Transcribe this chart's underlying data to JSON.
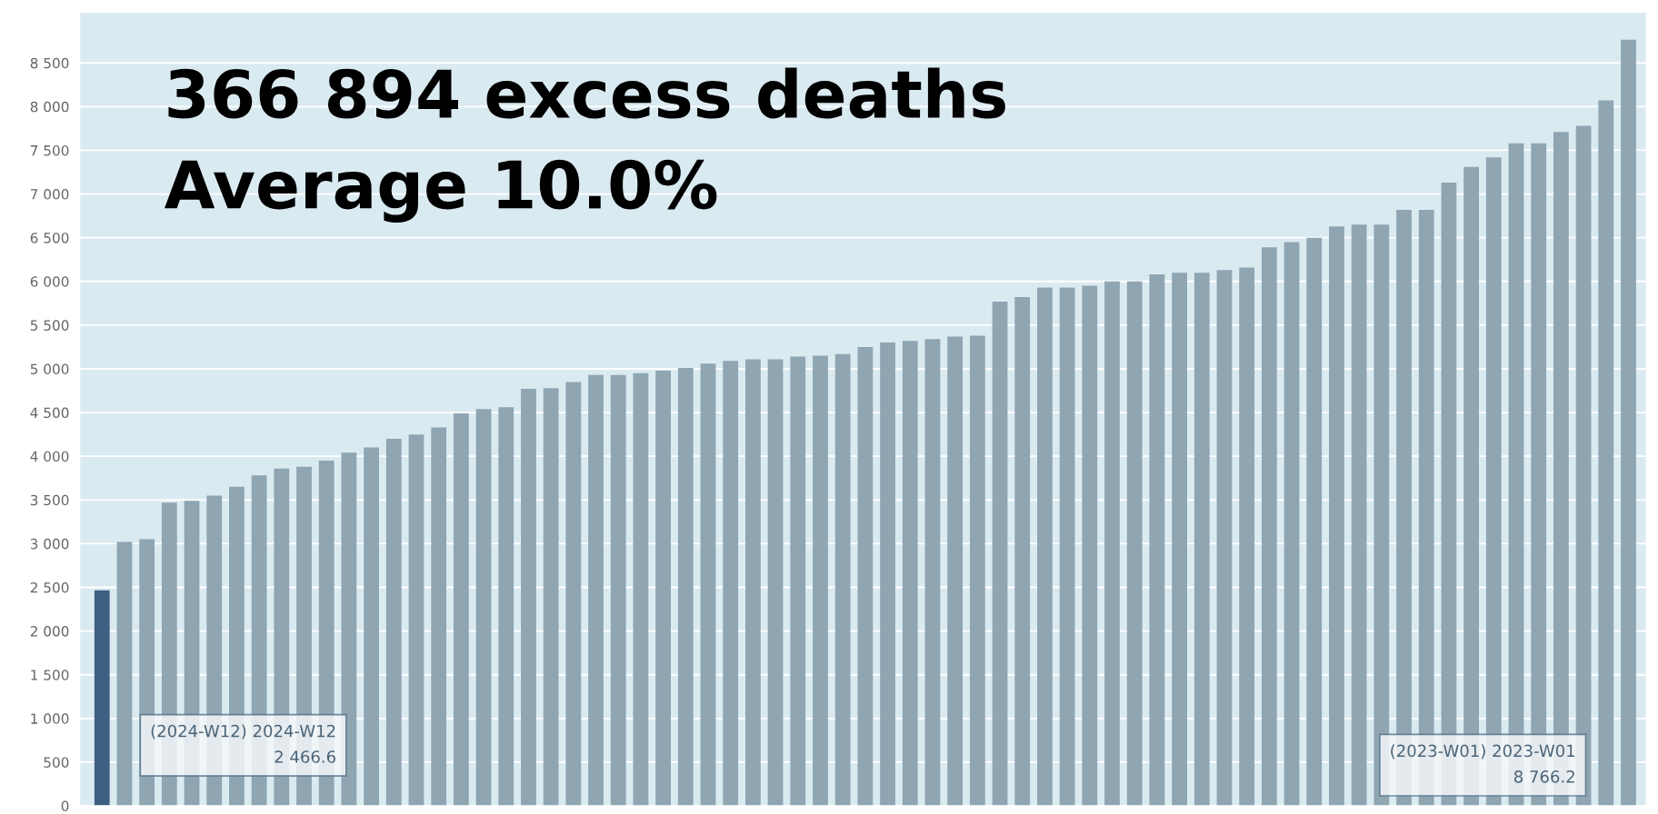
{
  "chart_data": {
    "type": "bar",
    "title": "366 894 excess deaths",
    "subtitle": "Average 10.0%",
    "categories": [
      null,
      null,
      null,
      null,
      null,
      null,
      null,
      null,
      null,
      null,
      null,
      null,
      null,
      null,
      null,
      null,
      null,
      null,
      null,
      null,
      null,
      null,
      null,
      null,
      null,
      null,
      null,
      null,
      null,
      null,
      null,
      null,
      null,
      null,
      null,
      null,
      null,
      null,
      null,
      null,
      null,
      null,
      null,
      null,
      null,
      null,
      null,
      null,
      null,
      null,
      null,
      null,
      null,
      null,
      null,
      null,
      null,
      null,
      null,
      null,
      null,
      null,
      null,
      null,
      null,
      null,
      null,
      null,
      null
    ],
    "values": [
      2466.6,
      3020,
      3050,
      3470,
      3490,
      3550,
      3650,
      3780,
      3860,
      3880,
      3950,
      4040,
      4100,
      4200,
      4250,
      4330,
      4490,
      4540,
      4560,
      4770,
      4780,
      4850,
      4930,
      4930,
      4950,
      4980,
      5010,
      5060,
      5090,
      5110,
      5110,
      5140,
      5150,
      5170,
      5250,
      5300,
      5320,
      5340,
      5370,
      5380,
      5770,
      5820,
      5930,
      5930,
      5950,
      6000,
      6000,
      6080,
      6100,
      6100,
      6130,
      6160,
      6390,
      6450,
      6500,
      6630,
      6650,
      6650,
      6820,
      6820,
      7130,
      7310,
      7420,
      7580,
      7580,
      7710,
      7780,
      8070,
      8766.2
    ],
    "colors": [
      "#3d6080",
      "#8fa5b2",
      "#8fa5b2",
      "#8fa5b2",
      "#8fa5b2",
      "#8fa5b2",
      "#8fa5b2",
      "#8fa5b2",
      "#8fa5b2",
      "#8fa5b2",
      "#8fa5b2",
      "#8fa5b2",
      "#8fa5b2",
      "#8fa5b2",
      "#8fa5b2",
      "#8fa5b2",
      "#8fa5b2",
      "#8fa5b2",
      "#8fa5b2",
      "#8fa5b2",
      "#8fa5b2",
      "#8fa5b2",
      "#8fa5b2",
      "#8fa5b2",
      "#8fa5b2",
      "#8fa5b2",
      "#8fa5b2",
      "#8fa5b2",
      "#8fa5b2",
      "#8fa5b2",
      "#8fa5b2",
      "#8fa5b2",
      "#8fa5b2",
      "#8fa5b2",
      "#8fa5b2",
      "#8fa5b2",
      "#8fa5b2",
      "#8fa5b2",
      "#8fa5b2",
      "#8fa5b2",
      "#8fa5b2",
      "#8fa5b2",
      "#8fa5b2",
      "#8fa5b2",
      "#8fa5b2",
      "#8fa5b2",
      "#8fa5b2",
      "#8fa5b2",
      "#8fa5b2",
      "#8fa5b2",
      "#8fa5b2",
      "#8fa5b2",
      "#8fa5b2",
      "#8fa5b2",
      "#8fa5b2",
      "#8fa5b2",
      "#8fa5b2",
      "#8fa5b2",
      "#8fa5b2",
      "#8fa5b2",
      "#8fa5b2",
      "#8fa5b2",
      "#8fa5b2",
      "#8fa5b2",
      "#8fa5b2",
      "#8fa5b2",
      "#8fa5b2",
      "#8fa5b2",
      "#8fa5b2"
    ],
    "ylim": [
      0,
      9080
    ],
    "yticks": [
      {
        "value": 0,
        "label": "0"
      },
      {
        "value": 500,
        "label": "500"
      },
      {
        "value": 1000,
        "label": "1 000"
      },
      {
        "value": 1500,
        "label": "1 500"
      },
      {
        "value": 2000,
        "label": "2 000"
      },
      {
        "value": 2500,
        "label": "2 500"
      },
      {
        "value": 3000,
        "label": "3 000"
      },
      {
        "value": 3500,
        "label": "3 500"
      },
      {
        "value": 4000,
        "label": "4 000"
      },
      {
        "value": 4500,
        "label": "4 500"
      },
      {
        "value": 5000,
        "label": "5 000"
      },
      {
        "value": 5500,
        "label": "5 500"
      },
      {
        "value": 6000,
        "label": "6 000"
      },
      {
        "value": 6500,
        "label": "6 500"
      },
      {
        "value": 7000,
        "label": "7 000"
      },
      {
        "value": 7500,
        "label": "7 500"
      },
      {
        "value": 8000,
        "label": "8 000"
      },
      {
        "value": 8500,
        "label": "8 500"
      }
    ],
    "grid": "y",
    "annotations": [
      "(2024-W12) 2024-W12\n2 466.6",
      "(2023-W01) 2023-W01\n8 766.2"
    ]
  }
}
